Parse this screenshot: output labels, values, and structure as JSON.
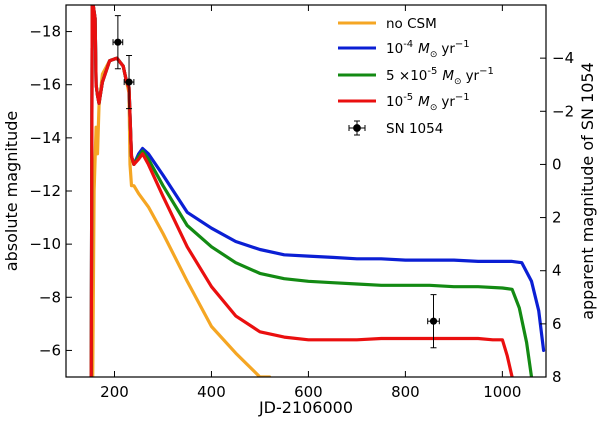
{
  "chart_data": {
    "type": "line",
    "xlabel": "JD-2106000",
    "ylabel": "absolute magnitude",
    "ylabel_right": "apparent magnitude of SN 1054",
    "xlim": [
      100,
      1090
    ],
    "ylim": [
      -5,
      -19
    ],
    "ylim_right": [
      8,
      -6
    ],
    "x_ticks": [
      200,
      400,
      600,
      800,
      1000
    ],
    "y_ticks": [
      -18,
      -16,
      -14,
      -12,
      -10,
      -8,
      -6
    ],
    "y_ticks_right": [
      -4,
      -2,
      0,
      2,
      4,
      6,
      8
    ],
    "legend_position": "top-right",
    "series": [
      {
        "name": "no CSM",
        "color": "#f5a623",
        "x": [
          155,
          158,
          162,
          165,
          168,
          175,
          190,
          205,
          218,
          225,
          230,
          232,
          235,
          240,
          250,
          270,
          300,
          350,
          400,
          450,
          500,
          520
        ],
        "y": [
          -5,
          -12,
          -14.4,
          -13.4,
          -15.2,
          -16.4,
          -16.9,
          -17,
          -16.7,
          -16.1,
          -15.7,
          -13,
          -12.2,
          -12.2,
          -11.9,
          -11.4,
          -10.4,
          -8.6,
          -6.9,
          -5.9,
          -5,
          -5
        ]
      },
      {
        "name": "10^-4 M_sun yr^-1",
        "label_text": "M",
        "color": "#0b1fd4",
        "x": [
          152,
          154,
          156,
          160,
          162,
          165,
          168,
          175,
          190,
          205,
          218,
          225,
          230,
          235,
          240,
          250,
          258,
          270,
          300,
          350,
          400,
          450,
          500,
          550,
          600,
          650,
          700,
          750,
          800,
          850,
          900,
          950,
          1000,
          1020,
          1040,
          1060,
          1075,
          1085
        ],
        "y": [
          -5,
          -19,
          -19,
          -18.5,
          -16,
          -15.6,
          -15.3,
          -16.1,
          -16.9,
          -17,
          -16.7,
          -16.1,
          -15.9,
          -13.3,
          -13,
          -13.4,
          -13.6,
          -13.4,
          -12.6,
          -11.2,
          -10.6,
          -10.1,
          -9.8,
          -9.6,
          -9.55,
          -9.5,
          -9.45,
          -9.45,
          -9.4,
          -9.4,
          -9.4,
          -9.35,
          -9.35,
          -9.35,
          -9.3,
          -8.6,
          -7.5,
          -6
        ]
      },
      {
        "name": "5x10^-5 M_sun yr^-1",
        "label_text": "M",
        "color": "#138a13",
        "x": [
          152,
          154,
          156,
          160,
          162,
          165,
          168,
          175,
          190,
          205,
          218,
          225,
          230,
          235,
          240,
          250,
          258,
          270,
          300,
          350,
          400,
          450,
          500,
          550,
          600,
          650,
          700,
          750,
          800,
          850,
          900,
          950,
          1000,
          1020,
          1035,
          1050,
          1060
        ],
        "y": [
          -5,
          -19,
          -19,
          -18.5,
          -16,
          -15.6,
          -15.3,
          -16.1,
          -16.9,
          -17,
          -16.7,
          -16.1,
          -15.9,
          -13.3,
          -13,
          -13.3,
          -13.5,
          -13.2,
          -12.2,
          -10.7,
          -9.9,
          -9.3,
          -8.9,
          -8.7,
          -8.6,
          -8.55,
          -8.5,
          -8.45,
          -8.45,
          -8.45,
          -8.4,
          -8.4,
          -8.35,
          -8.3,
          -7.6,
          -6.3,
          -5
        ]
      },
      {
        "name": "10^-5 M_sun yr^-1",
        "label_text": "M",
        "color": "#ea0f0f",
        "x": [
          152,
          154,
          156,
          160,
          162,
          165,
          168,
          175,
          190,
          205,
          218,
          225,
          230,
          235,
          240,
          250,
          258,
          270,
          300,
          350,
          400,
          450,
          500,
          550,
          600,
          650,
          700,
          750,
          800,
          850,
          900,
          950,
          980,
          1000,
          1010,
          1020
        ],
        "y": [
          -5,
          -19,
          -19,
          -18.5,
          -16,
          -15.6,
          -15.3,
          -16.1,
          -16.9,
          -17,
          -16.7,
          -16.1,
          -15.9,
          -13.3,
          -13,
          -13.2,
          -13.4,
          -13,
          -11.8,
          -9.9,
          -8.4,
          -7.3,
          -6.7,
          -6.5,
          -6.4,
          -6.4,
          -6.4,
          -6.45,
          -6.45,
          -6.45,
          -6.45,
          -6.45,
          -6.4,
          -6.4,
          -5.8,
          -5
        ]
      },
      {
        "name": "SN 1054",
        "color": "#000000",
        "points": [
          {
            "x": 207,
            "y": -17.6,
            "xerr": 10,
            "yerr": 1
          },
          {
            "x": 230,
            "y": -16.1,
            "xerr": 10,
            "yerr": 1
          },
          {
            "x": 858,
            "y": -7.1,
            "xerr": 12,
            "yerr": 1
          }
        ]
      }
    ]
  },
  "legend_items": [
    {
      "name": "no CSM",
      "color": "#f5a623",
      "kind": "line"
    },
    {
      "name": "10^-4 M_sun yr^-1",
      "color": "#0b1fd4",
      "kind": "line",
      "exp": "-4",
      "coef": "10",
      "unit": "yr"
    },
    {
      "name": "5x10^-5 M_sun yr^-1",
      "color": "#138a13",
      "kind": "line",
      "exp": "-5",
      "coef": "5 ×10",
      "unit": "yr"
    },
    {
      "name": "10^-5 M_sun yr^-1",
      "color": "#ea0f0f",
      "kind": "line",
      "exp": "-5",
      "coef": "10",
      "unit": "yr"
    },
    {
      "name": "SN 1054",
      "color": "#000000",
      "kind": "errorbar"
    }
  ]
}
